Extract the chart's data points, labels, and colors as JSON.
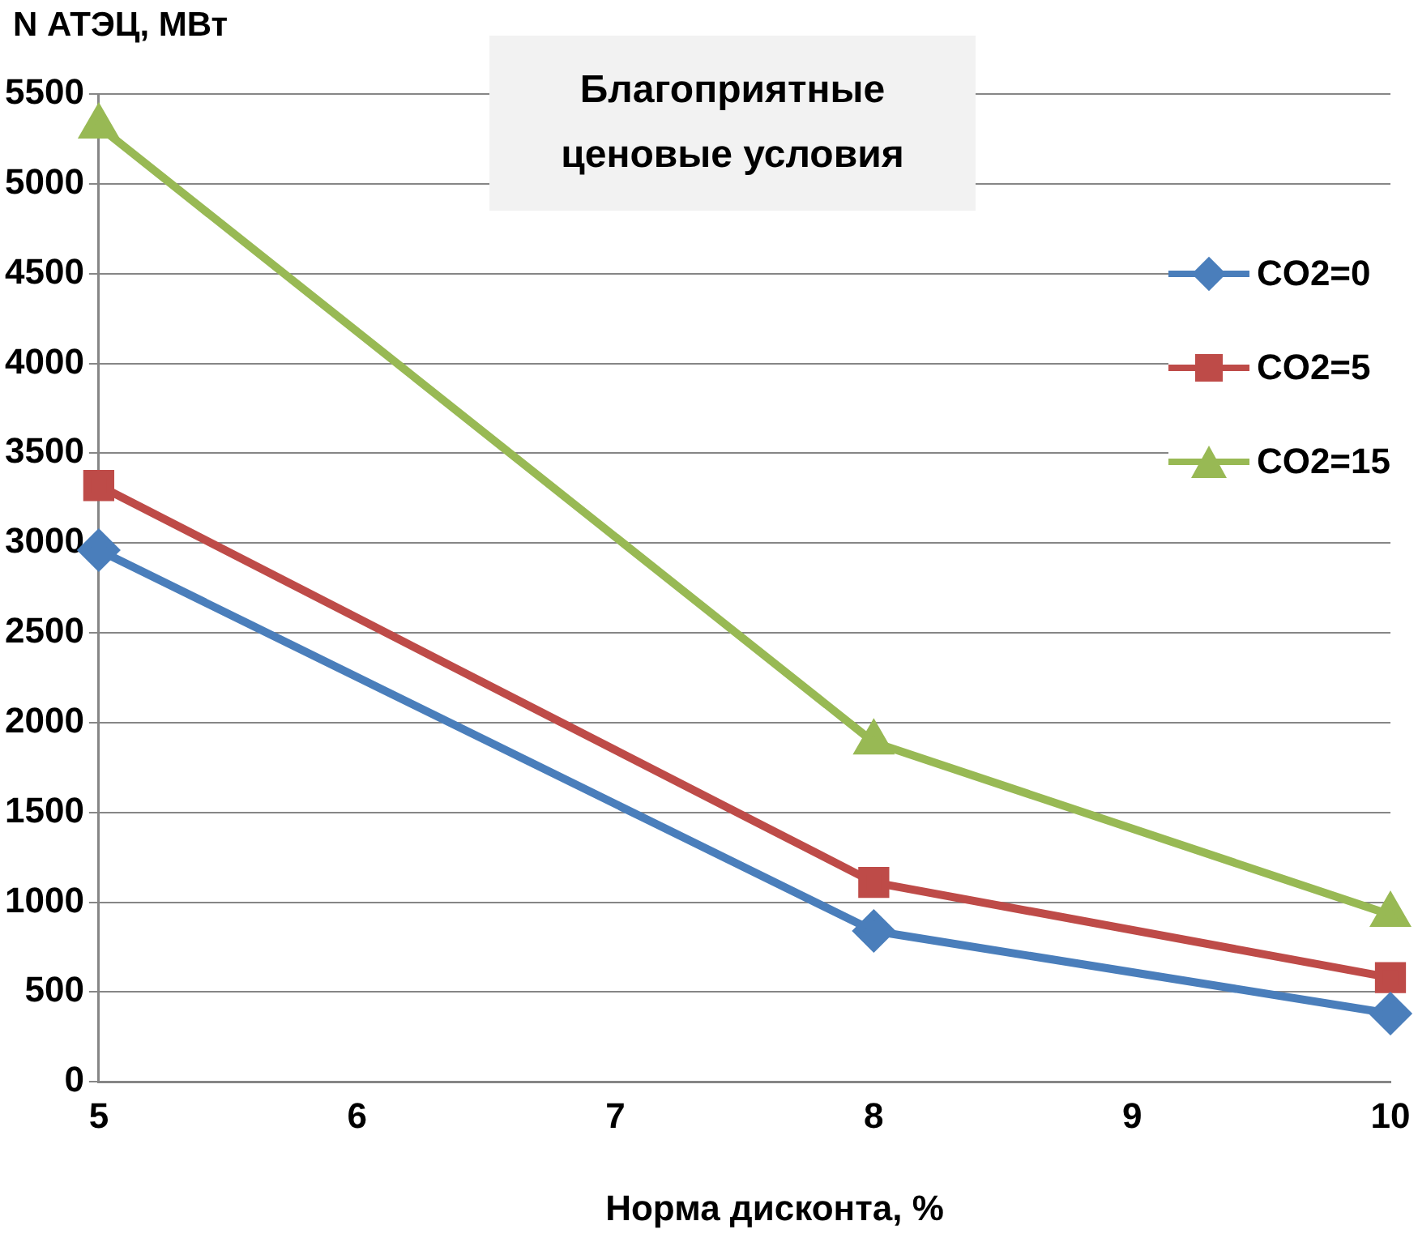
{
  "chart_data": {
    "type": "line",
    "title": "Благоприятные ценовые условия",
    "xlabel": "Норма дисконта, %",
    "ylabel": "N АТЭЦ, МВт",
    "x": [
      5,
      8,
      10
    ],
    "series": [
      {
        "name": "CO2=0",
        "color": "#4a7ebb",
        "values": [
          2960,
          840,
          380
        ],
        "marker": "diamond"
      },
      {
        "name": "CO2=5",
        "color": "#be4b48",
        "values": [
          3320,
          1110,
          580
        ],
        "marker": "square"
      },
      {
        "name": "CO2=15",
        "color": "#98b954",
        "values": [
          5320,
          1890,
          930
        ],
        "marker": "triangle"
      }
    ],
    "xlim": [
      5,
      10
    ],
    "xticks": [
      5,
      6,
      7,
      8,
      9,
      10
    ],
    "ylim": [
      0,
      5500
    ],
    "yticks": [
      0,
      500,
      1000,
      1500,
      2000,
      2500,
      3000,
      3500,
      4000,
      4500,
      5000,
      5500
    ],
    "grid": "y",
    "legend": "right",
    "line_style": "solid"
  }
}
